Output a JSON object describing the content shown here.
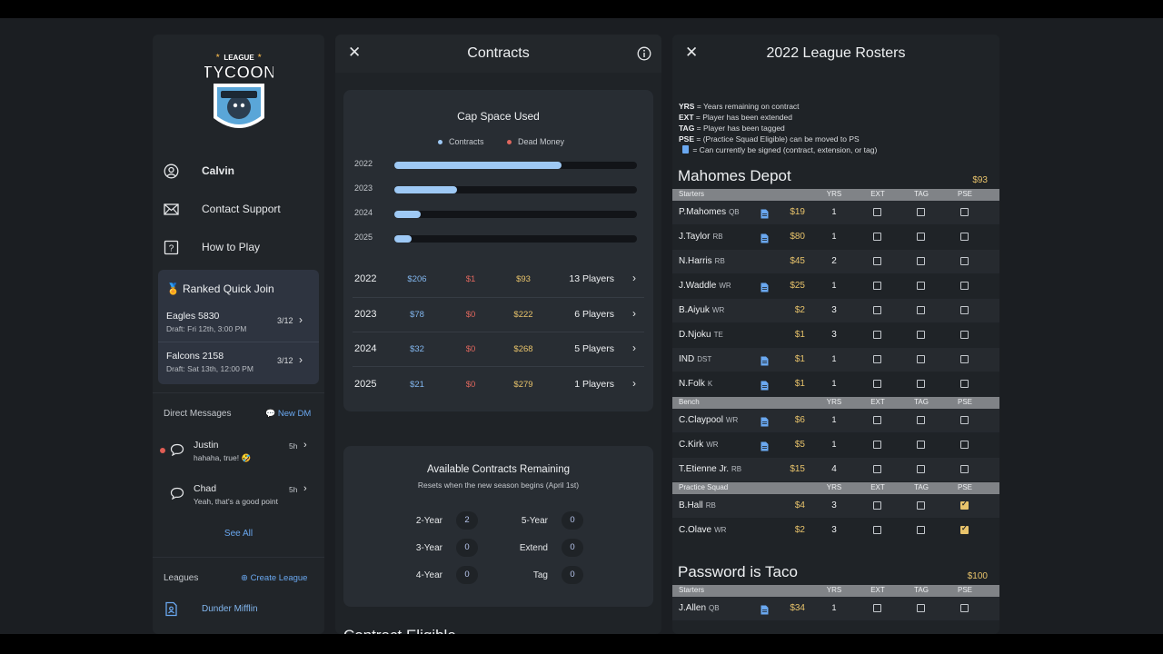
{
  "sidebar": {
    "logo_text_small": "LEAGUE",
    "logo_text_big": "TYCOON",
    "nav": [
      {
        "label": "Calvin",
        "icon": "user-circle-icon"
      },
      {
        "label": "Contact Support",
        "icon": "mail-icon"
      },
      {
        "label": "How to Play",
        "icon": "question-icon"
      }
    ],
    "ranked": {
      "title": "Ranked Quick Join",
      "icon": "medal-icon",
      "rows": [
        {
          "name": "Eagles 5830",
          "draft": "Draft: Fri 12th, 3:00 PM",
          "count": "3/12"
        },
        {
          "name": "Falcons 2158",
          "draft": "Draft: Sat 13th, 12:00 PM",
          "count": "3/12"
        }
      ]
    },
    "dm": {
      "heading": "Direct Messages",
      "new_label": "New DM",
      "items": [
        {
          "name": "Justin",
          "message": "hahaha, true! 🤣",
          "time": "5h"
        },
        {
          "name": "Chad",
          "message": "Yeah, that's a good point",
          "time": "5h"
        }
      ],
      "see_all": "See All"
    },
    "leagues": {
      "heading": "Leagues",
      "create_label": "Create League",
      "items": [
        {
          "name": "Dunder Mifflin"
        }
      ]
    }
  },
  "contracts": {
    "title": "Contracts",
    "cap": {
      "title": "Cap Space Used",
      "legend": [
        "Contracts",
        "Dead Money"
      ],
      "colors": {
        "contracts": "#9ec9f5",
        "dead": "#e0675e"
      },
      "bars": [
        {
          "year": "2022",
          "fraction": 0.69
        },
        {
          "year": "2023",
          "fraction": 0.26
        },
        {
          "year": "2024",
          "fraction": 0.11
        },
        {
          "year": "2025",
          "fraction": 0.07
        }
      ],
      "rows": [
        {
          "year": "2022",
          "contracts": "$206",
          "dead": "$1",
          "remaining": "$93",
          "players": "13 Players"
        },
        {
          "year": "2023",
          "contracts": "$78",
          "dead": "$0",
          "remaining": "$222",
          "players": "6 Players"
        },
        {
          "year": "2024",
          "contracts": "$32",
          "dead": "$0",
          "remaining": "$268",
          "players": "5 Players"
        },
        {
          "year": "2025",
          "contracts": "$21",
          "dead": "$0",
          "remaining": "$279",
          "players": "1 Players"
        }
      ]
    },
    "available": {
      "title": "Available Contracts Remaining",
      "subtitle": "Resets when the new season begins (April 1st)",
      "items": [
        {
          "label": "2-Year",
          "value": "2"
        },
        {
          "label": "5-Year",
          "value": "0"
        },
        {
          "label": "3-Year",
          "value": "0"
        },
        {
          "label": "Extend",
          "value": "0"
        },
        {
          "label": "4-Year",
          "value": "0"
        },
        {
          "label": "Tag",
          "value": "0"
        }
      ]
    },
    "eligible_heading": "Contract Eligible"
  },
  "rosters": {
    "title": "2022 League Rosters",
    "key": [
      {
        "abbr": "YRS",
        "text": " = Years remaining on contract"
      },
      {
        "abbr": "EXT",
        "text": " = Player has been extended"
      },
      {
        "abbr": "TAG",
        "text": " = Player has been tagged"
      },
      {
        "abbr": "PSE",
        "text": " = (Practice Squad Eligible) can be moved to PS"
      },
      {
        "abbr": "",
        "text": " = Can currently be signed (contract, extension, or tag)"
      }
    ],
    "columns": [
      "YRS",
      "EXT",
      "TAG",
      "PSE"
    ],
    "teams": [
      {
        "name": "Mahomes Depot",
        "budget": "$93",
        "sections": [
          {
            "name": "Starters",
            "players": [
              {
                "name": "P.Mahomes",
                "pos": "QB",
                "doc": true,
                "amt": "$19",
                "yrs": "1",
                "ext": false,
                "tag": false,
                "pse": false
              },
              {
                "name": "J.Taylor",
                "pos": "RB",
                "doc": true,
                "amt": "$80",
                "yrs": "1",
                "ext": false,
                "tag": false,
                "pse": false
              },
              {
                "name": "N.Harris",
                "pos": "RB",
                "doc": false,
                "amt": "$45",
                "yrs": "2",
                "ext": false,
                "tag": false,
                "pse": false
              },
              {
                "name": "J.Waddle",
                "pos": "WR",
                "doc": true,
                "amt": "$25",
                "yrs": "1",
                "ext": false,
                "tag": false,
                "pse": false
              },
              {
                "name": "B.Aiyuk",
                "pos": "WR",
                "doc": false,
                "amt": "$2",
                "yrs": "3",
                "ext": false,
                "tag": false,
                "pse": false
              },
              {
                "name": "D.Njoku",
                "pos": "TE",
                "doc": false,
                "amt": "$1",
                "yrs": "3",
                "ext": false,
                "tag": false,
                "pse": false
              },
              {
                "name": "IND",
                "pos": "DST",
                "doc": true,
                "amt": "$1",
                "yrs": "1",
                "ext": false,
                "tag": false,
                "pse": false
              },
              {
                "name": "N.Folk",
                "pos": "K",
                "doc": true,
                "amt": "$1",
                "yrs": "1",
                "ext": false,
                "tag": false,
                "pse": false
              }
            ]
          },
          {
            "name": "Bench",
            "players": [
              {
                "name": "C.Claypool",
                "pos": "WR",
                "doc": true,
                "amt": "$6",
                "yrs": "1",
                "ext": false,
                "tag": false,
                "pse": false
              },
              {
                "name": "C.Kirk",
                "pos": "WR",
                "doc": true,
                "amt": "$5",
                "yrs": "1",
                "ext": false,
                "tag": false,
                "pse": false
              },
              {
                "name": "T.Etienne Jr.",
                "pos": "RB",
                "doc": false,
                "amt": "$15",
                "yrs": "4",
                "ext": false,
                "tag": false,
                "pse": false
              }
            ]
          },
          {
            "name": "Practice Squad",
            "players": [
              {
                "name": "B.Hall",
                "pos": "RB",
                "doc": false,
                "amt": "$4",
                "yrs": "3",
                "ext": false,
                "tag": false,
                "pse": true
              },
              {
                "name": "C.Olave",
                "pos": "WR",
                "doc": false,
                "amt": "$2",
                "yrs": "3",
                "ext": false,
                "tag": false,
                "pse": true
              }
            ]
          }
        ]
      },
      {
        "name": "Password is Taco",
        "budget": "$100",
        "sections": [
          {
            "name": "Starters",
            "players": [
              {
                "name": "J.Allen",
                "pos": "QB",
                "doc": true,
                "amt": "$34",
                "yrs": "1",
                "ext": false,
                "tag": false,
                "pse": false
              }
            ]
          }
        ]
      }
    ]
  }
}
